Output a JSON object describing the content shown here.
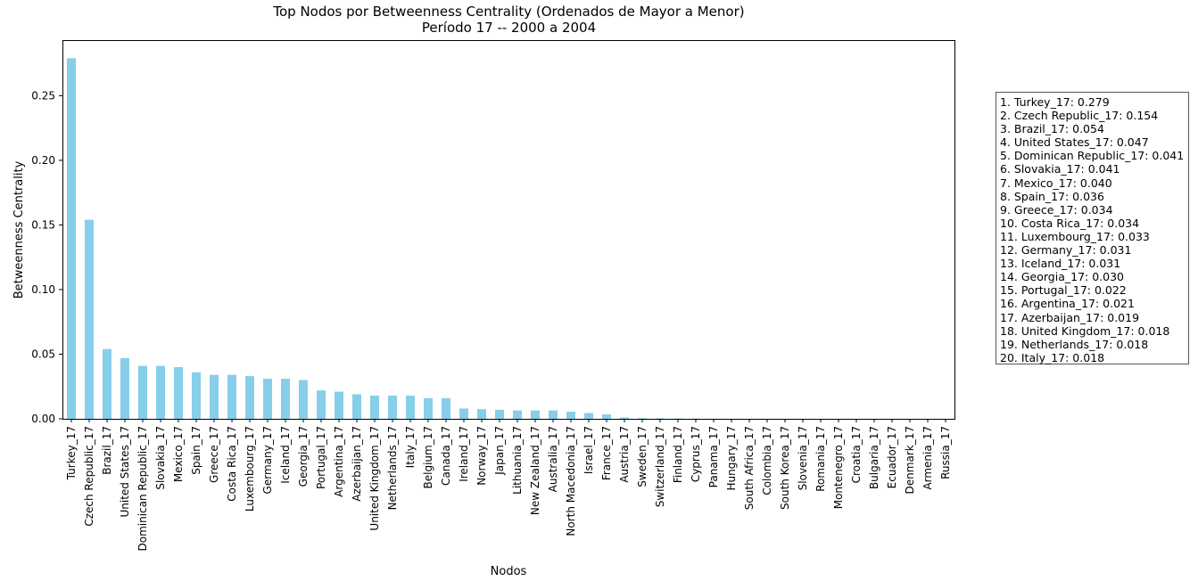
{
  "chart_data": {
    "type": "bar",
    "title": "Top Nodos por Betweenness Centrality (Ordenados de Mayor a Menor)",
    "subtitle": "Período 17 -- 2000 a 2004",
    "xlabel": "Nodos",
    "ylabel": "Betweenness Centrality",
    "ylim": [
      0,
      0.293
    ],
    "yticks": [
      "0.00",
      "0.05",
      "0.10",
      "0.15",
      "0.20",
      "0.25"
    ],
    "ytick_values": [
      0,
      0.05,
      0.1,
      0.15,
      0.2,
      0.25
    ],
    "grid": false,
    "bar_color": "#87ceeb",
    "legend_position": "right",
    "categories": [
      "Turkey_17",
      "Czech Republic_17",
      "Brazil_17",
      "United States_17",
      "Dominican Republic_17",
      "Slovakia_17",
      "Mexico_17",
      "Spain_17",
      "Greece_17",
      "Costa Rica_17",
      "Luxembourg_17",
      "Germany_17",
      "Iceland_17",
      "Georgia_17",
      "Portugal_17",
      "Argentina_17",
      "Azerbaijan_17",
      "United Kingdom_17",
      "Netherlands_17",
      "Italy_17",
      "Belgium_17",
      "Canada_17",
      "Ireland_17",
      "Norway_17",
      "Japan_17",
      "Lithuania_17",
      "New Zealand_17",
      "Australia_17",
      "North Macedonia_17",
      "Israel_17",
      "France_17",
      "Austria_17",
      "Sweden_17",
      "Switzerland_17",
      "Finland_17",
      "Cyprus_17",
      "Panama_17",
      "Hungary_17",
      "South Africa_17",
      "Colombia_17",
      "South Korea_17",
      "Slovenia_17",
      "Romania_17",
      "Montenegro_17",
      "Croatia_17",
      "Bulgaria_17",
      "Ecuador_17",
      "Denmark_17",
      "Armenia_17",
      "Russia_17"
    ],
    "values": [
      0.279,
      0.154,
      0.054,
      0.047,
      0.041,
      0.041,
      0.04,
      0.036,
      0.034,
      0.034,
      0.033,
      0.031,
      0.031,
      0.03,
      0.022,
      0.021,
      0.019,
      0.018,
      0.018,
      0.018,
      0.016,
      0.016,
      0.008,
      0.0075,
      0.007,
      0.0065,
      0.0065,
      0.0065,
      0.0055,
      0.0045,
      0.0035,
      0.001,
      0.0005,
      0.0004,
      0.0003,
      0.0002,
      0.0001,
      0,
      0,
      0,
      0,
      0,
      0,
      0,
      0,
      0,
      0,
      0,
      0,
      0
    ],
    "legend_entries": [
      "1. Turkey_17: 0.279",
      "2. Czech Republic_17: 0.154",
      "3. Brazil_17: 0.054",
      "4. United States_17: 0.047",
      "5. Dominican Republic_17: 0.041",
      "6. Slovakia_17: 0.041",
      "7. Mexico_17: 0.040",
      "8. Spain_17: 0.036",
      "9. Greece_17: 0.034",
      "10. Costa Rica_17: 0.034",
      "11. Luxembourg_17: 0.033",
      "12. Germany_17: 0.031",
      "13. Iceland_17: 0.031",
      "14. Georgia_17: 0.030",
      "15. Portugal_17: 0.022",
      "16. Argentina_17: 0.021",
      "17. Azerbaijan_17: 0.019",
      "18. United Kingdom_17: 0.018",
      "19. Netherlands_17: 0.018",
      "20. Italy_17: 0.018"
    ]
  }
}
